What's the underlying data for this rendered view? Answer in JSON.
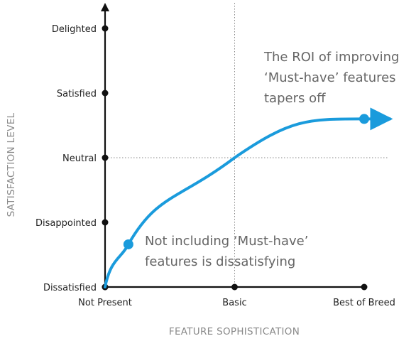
{
  "chart_data": {
    "type": "line",
    "xlabel": "FEATURE SOPHISTICATION",
    "ylabel": "SATISFACTION LEVEL",
    "x_ticks": [
      "Not Present",
      "Basic",
      "Best of Breed"
    ],
    "y_ticks": [
      "Dissatisfied",
      "Disappointed",
      "Neutral",
      "Satisfied",
      "Delighted"
    ],
    "xlim": [
      0,
      2
    ],
    "ylim": [
      0,
      4
    ],
    "reference_lines": {
      "x": 1,
      "y": 2
    },
    "series": [
      {
        "color": "#1a9bdc",
        "points": [
          [
            0,
            0
          ],
          [
            0.18,
            0.66
          ],
          [
            1,
            2
          ],
          [
            2,
            2.6
          ],
          [
            2.2,
            2.6
          ]
        ],
        "markers": [
          [
            0.18,
            0.66
          ],
          [
            2,
            2.6
          ]
        ],
        "arrow_end": true
      }
    ],
    "annotations": [
      {
        "lines": [
          "The ROI of improving",
          "‘Must-have’ features",
          "tapers off"
        ]
      },
      {
        "lines": [
          "Not including ‘Must-have’",
          "features is dissatisfying"
        ]
      }
    ],
    "colors": {
      "axis": "#111111",
      "curve": "#1a9bdc",
      "reference": "#888888",
      "annotation_text": "#666666"
    }
  }
}
